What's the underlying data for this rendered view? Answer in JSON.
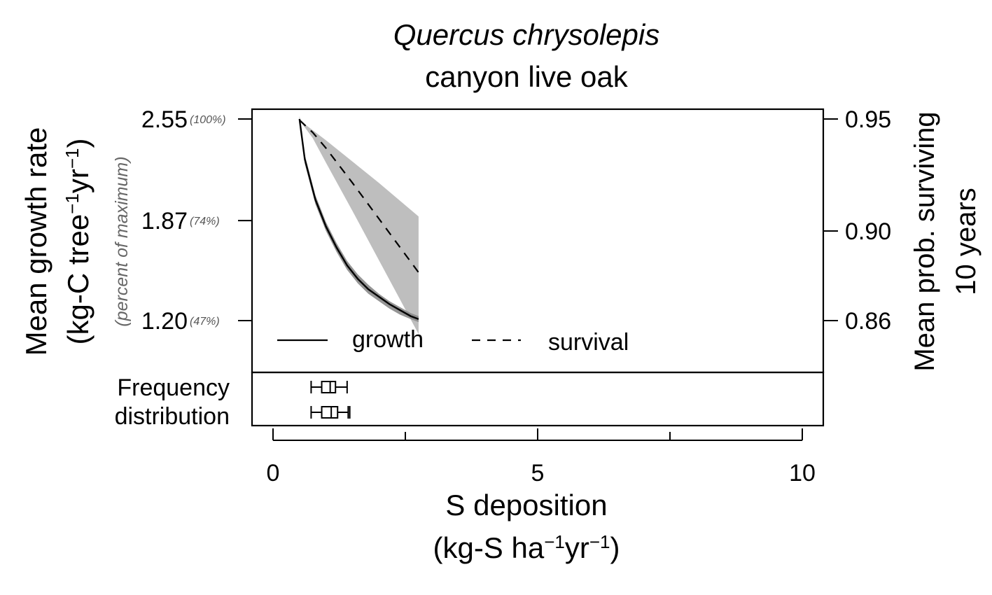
{
  "chart_data": {
    "type": "line",
    "title": "Quercus chrysolepis",
    "subtitle": "canyon live oak",
    "xlabel": {
      "line1": "S deposition",
      "line2_prefix": "(kg-S ha",
      "line2_mid": "yr",
      "line2_suffix": ")",
      "sup": "−1"
    },
    "ylabel_left": {
      "line1": "Mean growth rate",
      "line2_prefix": "(kg-C tree",
      "line2_mid": "yr",
      "line2_suffix": ")",
      "sup": "−1"
    },
    "ylabel_left_note": "(percent of maximum)",
    "ylabel_right": {
      "line1": "Mean prob. surviving",
      "line2": "10 years"
    },
    "xlim": [
      -0.4,
      10.4
    ],
    "x_ticks": [
      {
        "value": 0,
        "label": "0"
      },
      {
        "value": 5,
        "label": "5"
      },
      {
        "value": 10,
        "label": "10"
      }
    ],
    "x_minor_ticks": [
      2.5,
      7.5
    ],
    "y_left_ticks": [
      {
        "value": 2.55,
        "label": "2.55",
        "pct": "(100%)"
      },
      {
        "value": 1.87,
        "label": "1.87",
        "pct": "(74%)"
      },
      {
        "value": 1.2,
        "label": "1.20",
        "pct": "(47%)"
      }
    ],
    "y_right_ticks": [
      {
        "value": 0.95,
        "label": "0.95"
      },
      {
        "value": 0.9,
        "label": "0.90"
      },
      {
        "value": 0.86,
        "label": "0.86"
      }
    ],
    "series": [
      {
        "name": "growth",
        "line_style": "solid",
        "x": [
          0.5,
          0.6,
          0.8,
          1.0,
          1.2,
          1.4,
          1.6,
          1.8,
          2.0,
          2.2,
          2.4,
          2.6,
          2.75
        ],
        "y": [
          2.55,
          2.28,
          2.01,
          1.83,
          1.69,
          1.57,
          1.48,
          1.41,
          1.36,
          1.31,
          1.27,
          1.23,
          1.21
        ],
        "band_upper": [
          2.57,
          2.31,
          2.04,
          1.86,
          1.72,
          1.6,
          1.51,
          1.44,
          1.38,
          1.33,
          1.29,
          1.25,
          1.23
        ],
        "band_lower": [
          2.53,
          2.25,
          1.98,
          1.8,
          1.66,
          1.54,
          1.45,
          1.38,
          1.33,
          1.28,
          1.24,
          1.21,
          1.19
        ],
        "color": "#000000"
      },
      {
        "name": "survival",
        "line_style": "dashed",
        "x": [
          0.5,
          0.75,
          1.0,
          1.5,
          2.0,
          2.5,
          2.75
        ],
        "y": [
          0.9495,
          0.944,
          0.937,
          0.9215,
          0.9055,
          0.8895,
          0.8815
        ],
        "band_upper": [
          0.9495,
          0.945,
          0.9405,
          0.931,
          0.9215,
          0.9115,
          0.9065
        ],
        "band_lower": [
          0.9495,
          0.9415,
          0.9305,
          0.909,
          0.887,
          0.865,
          0.854
        ],
        "color": "#000000",
        "band_color": "#bebebe"
      }
    ],
    "frequency_distribution": {
      "label_line1": "Frequency",
      "label_line2": "distribution",
      "boxplots": [
        {
          "whisker_low": 0.72,
          "q1": 0.92,
          "median": 1.08,
          "q3": 1.18,
          "whisker_high": 1.4
        },
        {
          "whisker_low": 0.72,
          "q1": 0.92,
          "median": 1.1,
          "q3": 1.22,
          "whisker_high": 1.42,
          "outlier": 1.45
        }
      ]
    },
    "legend": {
      "position": "bottom-left",
      "entries": [
        "growth",
        "survival"
      ]
    }
  }
}
